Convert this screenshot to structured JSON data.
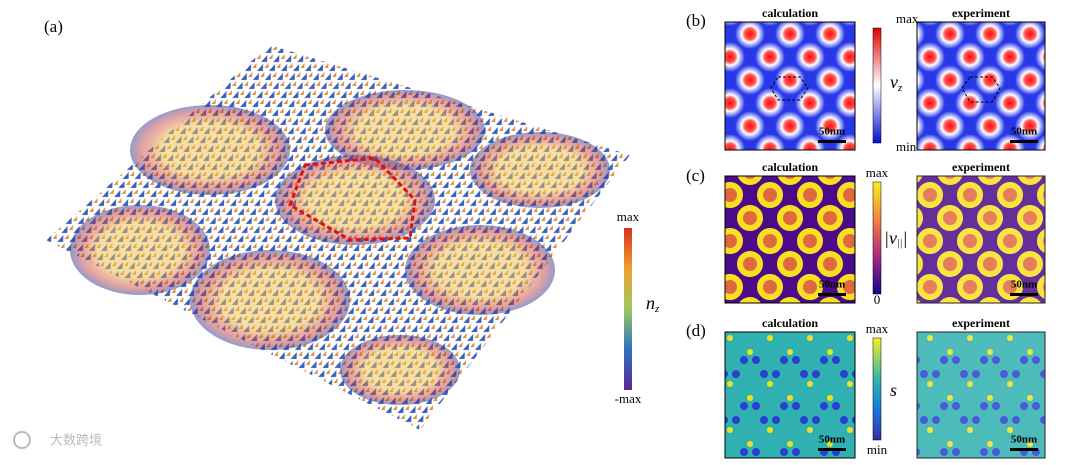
{
  "panel_a": {
    "label": "(a)",
    "colorbar": {
      "max": "max",
      "symbol": "n",
      "subscript": "z",
      "min": "-max"
    }
  },
  "panel_b": {
    "label": "(b)",
    "left_title": "calculation",
    "right_title": "experiment",
    "colorbar": {
      "max": "max",
      "symbol": "v",
      "subscript": "z",
      "min": "min"
    },
    "scale_left": "50nm",
    "scale_right": "50nm"
  },
  "panel_c": {
    "label": "(c)",
    "left_title": "calculation",
    "right_title": "experiment",
    "colorbar": {
      "max": "max",
      "symbol": "|v",
      "subscript": "||",
      "suffix": "|",
      "min": "0"
    },
    "scale_left": "50nm",
    "scale_right": "50nm"
  },
  "panel_d": {
    "label": "(d)",
    "left_title": "calculation",
    "right_title": "experiment",
    "colorbar": {
      "max": "max",
      "symbol": "s",
      "min": "min"
    },
    "scale_left": "50nm",
    "scale_right": "50nm"
  },
  "watermark": "大数跨境"
}
